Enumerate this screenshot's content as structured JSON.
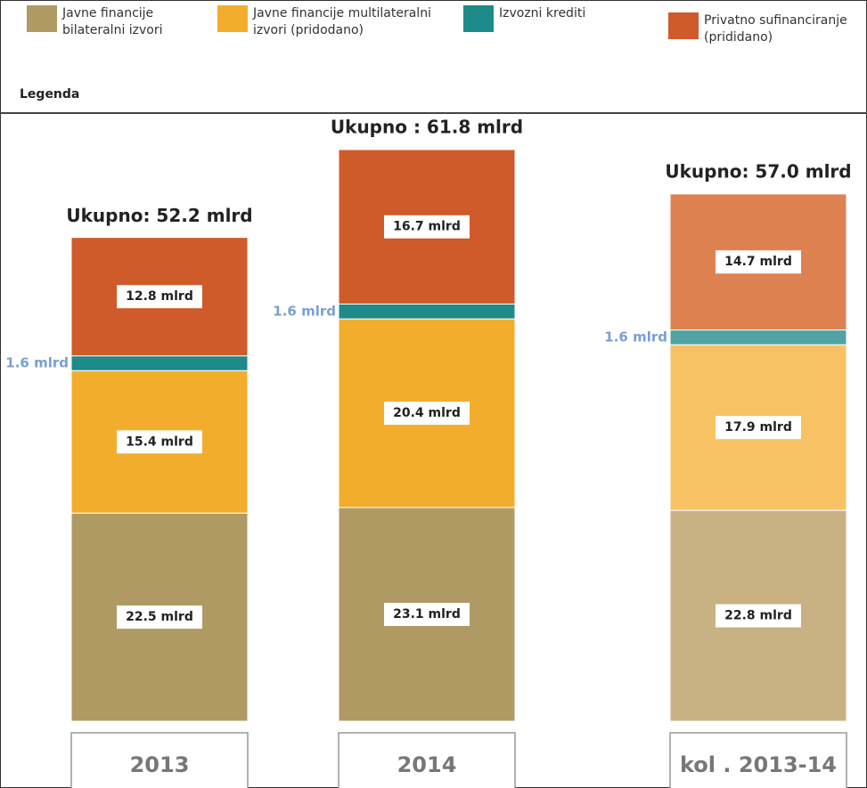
{
  "chart_data": {
    "type": "stacked-bar",
    "legend_title": "Legenda",
    "categories": [
      "2013",
      "2014",
      "kol . 2013-14"
    ],
    "series": [
      {
        "name": "Javne financije bilateralni izvori",
        "color": "#b09a64",
        "colors": [
          "#b09a64",
          "#b09a64",
          "#c8b283"
        ],
        "values": [
          22.5,
          23.1,
          22.8
        ],
        "value_labels": [
          "22.5 mlrd",
          "23.1 mlrd",
          "22.8 mlrd"
        ]
      },
      {
        "name": "Javne financije multilateralni izvori (pridodano)",
        "color": "#f3ad2c",
        "colors": [
          "#f3ad2c",
          "#f3ad2c",
          "#f8c264"
        ],
        "values": [
          15.4,
          20.4,
          17.9
        ],
        "value_labels": [
          "15.4 mlrd",
          "20.4 mlrd",
          "17.9 mlrd"
        ]
      },
      {
        "name": "Izvozni krediti",
        "color": "#1e8a8a",
        "colors": [
          "#1e8a8a",
          "#1e8a8a",
          "#4fa3a2"
        ],
        "values": [
          1.6,
          1.6,
          1.6
        ],
        "value_labels": [
          "1.6 mlrd",
          "1.6 mlrd",
          "1.6 mlrd"
        ],
        "label_outside": true
      },
      {
        "name": "Privatno sufinanciranje (prididano)",
        "color": "#cf5a2a",
        "colors": [
          "#cf5a2a",
          "#cf5a2a",
          "#de8252"
        ],
        "values": [
          12.8,
          16.7,
          14.7
        ],
        "value_labels": [
          "12.8 mlrd",
          "16.7 mlrd",
          "14.7 mlrd"
        ]
      }
    ],
    "totals": [
      52.2,
      61.8,
      57.0
    ],
    "total_labels": [
      "Ukupno: 52.2 mlrd",
      "Ukupno : 61.8 mlrd",
      "Ukupno: 57.0 mlrd"
    ]
  }
}
